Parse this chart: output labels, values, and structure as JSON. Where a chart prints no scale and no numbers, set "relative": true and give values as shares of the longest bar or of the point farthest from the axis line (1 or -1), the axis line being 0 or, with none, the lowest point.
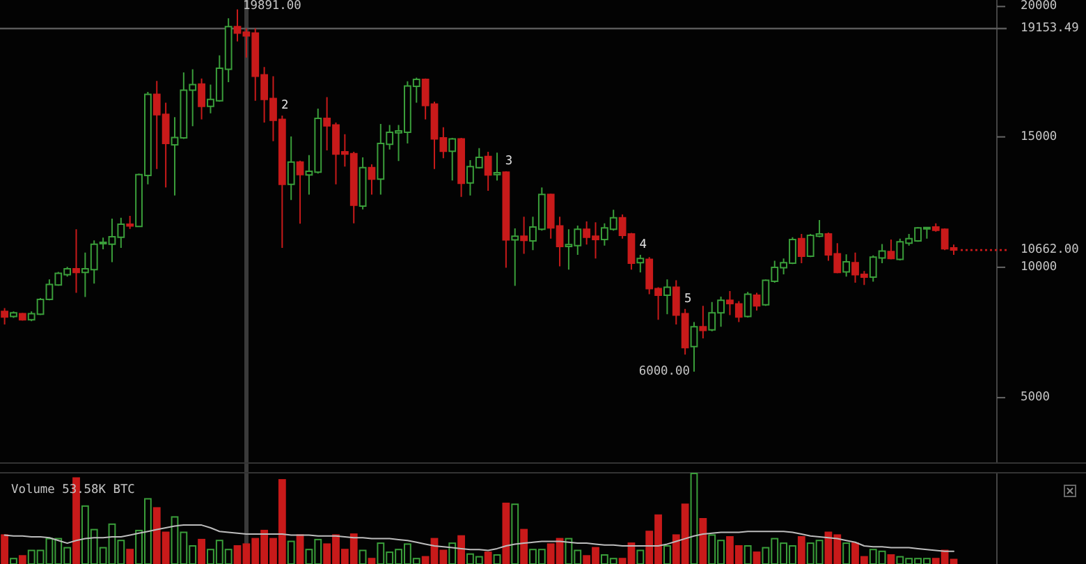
{
  "chart_data": [
    {
      "type": "candlestick",
      "categories": [
        null,
        null,
        null,
        null,
        null,
        null,
        null,
        null,
        null,
        null,
        null,
        null,
        null,
        null,
        null,
        null,
        null,
        null,
        null,
        null,
        null,
        null,
        null,
        null,
        null,
        null,
        null,
        null,
        null,
        null,
        null,
        null,
        null,
        null,
        null,
        null,
        null,
        null,
        null,
        null,
        null,
        null,
        null,
        null,
        null,
        null,
        null,
        null,
        null,
        null,
        null,
        null,
        null,
        null,
        null,
        null,
        null,
        null,
        null,
        null,
        null,
        null,
        null,
        null,
        null,
        null,
        null,
        null,
        null,
        null,
        null,
        null,
        null,
        null,
        null,
        null,
        null,
        null,
        null,
        null,
        null,
        null,
        null,
        null,
        null,
        null,
        null,
        null,
        null,
        null,
        null,
        null,
        null,
        null,
        null,
        null,
        null,
        null,
        null,
        null,
        null,
        null,
        null,
        null,
        null,
        null,
        null
      ],
      "ohlc": [
        [
          8308,
          8433,
          7810,
          8095
        ],
        [
          8113,
          8308,
          8060,
          8255
        ],
        [
          8220,
          8255,
          7953,
          7989
        ],
        [
          7989,
          8308,
          7936,
          8220
        ],
        [
          8202,
          8824,
          8167,
          8771
        ],
        [
          8771,
          9536,
          8735,
          9340
        ],
        [
          9322,
          9820,
          9287,
          9767
        ],
        [
          9713,
          10016,
          9642,
          9945
        ],
        [
          9945,
          11457,
          9020,
          9802
        ],
        [
          9802,
          10567,
          8860,
          9945
        ],
        [
          9909,
          11030,
          9376,
          10887
        ],
        [
          10905,
          11136,
          10692,
          10958
        ],
        [
          10887,
          11866,
          10194,
          11172
        ],
        [
          11154,
          11902,
          10745,
          11653
        ],
        [
          11653,
          11973,
          11475,
          11582
        ],
        [
          11564,
          13592,
          11546,
          13556
        ],
        [
          13521,
          16723,
          13183,
          16634
        ],
        [
          16634,
          17149,
          13770,
          15849
        ],
        [
          15867,
          16312,
          13058,
          14748
        ],
        [
          14694,
          15760,
          12754,
          14979
        ],
        [
          14961,
          17470,
          14926,
          16794
        ],
        [
          16794,
          17594,
          15407,
          17007
        ],
        [
          17025,
          17240,
          15673,
          16171
        ],
        [
          16171,
          17007,
          15904,
          16438
        ],
        [
          16385,
          18128,
          16350,
          17630
        ],
        [
          17594,
          19551,
          17096,
          19231
        ],
        [
          19231,
          19891,
          18662,
          18982
        ],
        [
          19017,
          19160,
          18039,
          18875
        ],
        [
          18982,
          19160,
          16385,
          17328
        ],
        [
          17381,
          17683,
          15548,
          16438
        ],
        [
          16474,
          17328,
          14837,
          15638
        ],
        [
          15673,
          15815,
          10745,
          13183
        ],
        [
          13183,
          15015,
          12577,
          14036
        ],
        [
          14036,
          14090,
          11671,
          13556
        ],
        [
          13539,
          14304,
          12790,
          13681
        ],
        [
          13646,
          16083,
          13592,
          15709
        ],
        [
          15709,
          16528,
          14481,
          15424
        ],
        [
          15460,
          15548,
          13183,
          14339
        ],
        [
          14428,
          15104,
          13859,
          14339
        ],
        [
          14357,
          14428,
          11688,
          12382
        ],
        [
          12346,
          14215,
          12221,
          13823
        ],
        [
          13823,
          13948,
          12790,
          13379
        ],
        [
          13379,
          15495,
          12790,
          14749
        ],
        [
          14713,
          15460,
          14517,
          15175
        ],
        [
          15157,
          15460,
          14072,
          15228
        ],
        [
          15175,
          17132,
          14749,
          16954
        ],
        [
          16936,
          17274,
          16314,
          17203
        ],
        [
          17203,
          17239,
          15673,
          16207
        ],
        [
          16260,
          16349,
          13770,
          14926
        ],
        [
          14961,
          15371,
          14179,
          14446
        ],
        [
          14446,
          14961,
          13325,
          14926
        ],
        [
          14926,
          14961,
          12702,
          13218
        ],
        [
          13236,
          14108,
          12754,
          13859
        ],
        [
          13823,
          14570,
          13788,
          14215
        ],
        [
          14250,
          14428,
          12932,
          13539
        ],
        [
          13557,
          14393,
          13325,
          13628
        ],
        [
          13646,
          13681,
          9980,
          11048
        ],
        [
          11048,
          11493,
          9287,
          11190
        ],
        [
          11190,
          11937,
          10514,
          11030
        ],
        [
          11012,
          11937,
          10656,
          11546
        ],
        [
          11457,
          13059,
          11404,
          12793
        ],
        [
          12793,
          12829,
          11101,
          11511
        ],
        [
          11582,
          11937,
          10034,
          10798
        ],
        [
          10798,
          11457,
          9909,
          10870
        ],
        [
          10834,
          11599,
          10478,
          11457
        ],
        [
          11457,
          11759,
          10870,
          11154
        ],
        [
          11190,
          11724,
          10336,
          11066
        ],
        [
          11066,
          11688,
          10834,
          11511
        ],
        [
          11457,
          12204,
          11404,
          11902
        ],
        [
          11902,
          12027,
          11101,
          11226
        ],
        [
          11279,
          11315,
          9909,
          10158
        ],
        [
          10176,
          10478,
          9802,
          10336
        ],
        [
          10301,
          10390,
          8966,
          9180
        ],
        [
          9180,
          9233,
          7988,
          8931
        ],
        [
          8931,
          9536,
          8202,
          9233
        ],
        [
          9233,
          9500,
          7810,
          8166
        ],
        [
          8220,
          8398,
          6654,
          6921
        ],
        [
          6957,
          7900,
          6000,
          7722
        ],
        [
          7722,
          8522,
          7276,
          7580
        ],
        [
          7598,
          8665,
          7544,
          8256
        ],
        [
          8256,
          8878,
          7722,
          8736
        ],
        [
          8736,
          9091,
          8166,
          8611
        ],
        [
          8593,
          8700,
          7900,
          8095
        ],
        [
          8113,
          9056,
          8077,
          8967
        ],
        [
          8931,
          9020,
          8344,
          8522
        ],
        [
          8558,
          9536,
          8522,
          9500
        ],
        [
          9465,
          10247,
          9411,
          9998
        ],
        [
          9980,
          10336,
          9731,
          10176
        ],
        [
          10158,
          11154,
          10123,
          11066
        ],
        [
          11101,
          11279,
          10158,
          10425
        ],
        [
          10425,
          11279,
          10390,
          11226
        ],
        [
          11190,
          11813,
          11154,
          11279
        ],
        [
          11279,
          11332,
          10247,
          10478
        ],
        [
          10514,
          10923,
          9767,
          9802
        ],
        [
          9820,
          10496,
          9642,
          10212
        ],
        [
          10176,
          10567,
          9411,
          9714
        ],
        [
          9731,
          9856,
          9322,
          9625
        ],
        [
          9625,
          10460,
          9447,
          10390
        ],
        [
          10354,
          10888,
          10158,
          10621
        ],
        [
          10603,
          11066,
          10301,
          10336
        ],
        [
          10301,
          11101,
          10265,
          10976
        ],
        [
          10923,
          11279,
          10834,
          11101
        ],
        [
          11012,
          11546,
          10976,
          11511
        ],
        [
          11475,
          11546,
          11101,
          11528
        ],
        [
          11546,
          11688,
          11368,
          11421
        ],
        [
          11457,
          11493,
          10656,
          10710
        ],
        [
          10745,
          10870,
          10478,
          10662
        ]
      ],
      "colors": [
        "#c81a1a",
        "#3a9e3a",
        "#c81a1a",
        "#3a9e3a",
        "#3a9e3a",
        "#3a9e3a",
        "#3a9e3a",
        "#3a9e3a",
        "#c81a1a",
        "#3a9e3a",
        "#3a9e3a",
        "#3a9e3a",
        "#3a9e3a",
        "#3a9e3a",
        "#c81a1a",
        "#3a9e3a",
        "#3a9e3a",
        "#c81a1a",
        "#c81a1a",
        "#3a9e3a",
        "#3a9e3a",
        "#3a9e3a",
        "#c81a1a",
        "#3a9e3a",
        "#3a9e3a",
        "#3a9e3a",
        "#c81a1a",
        "#c81a1a",
        "#c81a1a",
        "#c81a1a",
        "#c81a1a",
        "#c81a1a",
        "#3a9e3a",
        "#c81a1a",
        "#3a9e3a",
        "#3a9e3a",
        "#c81a1a",
        "#c81a1a",
        "#c81a1a",
        "#c81a1a",
        "#3a9e3a",
        "#c81a1a",
        "#3a9e3a",
        "#3a9e3a",
        "#3a9e3a",
        "#3a9e3a",
        "#3a9e3a",
        "#c81a1a",
        "#c81a1a",
        "#c81a1a",
        "#3a9e3a",
        "#c81a1a",
        "#3a9e3a",
        "#3a9e3a",
        "#c81a1a",
        "#3a9e3a",
        "#c81a1a",
        "#3a9e3a",
        "#c81a1a",
        "#3a9e3a",
        "#3a9e3a",
        "#c81a1a",
        "#c81a1a",
        "#3a9e3a",
        "#3a9e3a",
        "#c81a1a",
        "#c81a1a",
        "#3a9e3a",
        "#3a9e3a",
        "#c81a1a",
        "#c81a1a",
        "#3a9e3a",
        "#c81a1a",
        "#c81a1a",
        "#3a9e3a",
        "#c81a1a",
        "#c81a1a",
        "#3a9e3a",
        "#c81a1a",
        "#3a9e3a",
        "#3a9e3a",
        "#c81a1a",
        "#c81a1a",
        "#3a9e3a",
        "#c81a1a",
        "#3a9e3a",
        "#3a9e3a",
        "#3a9e3a",
        "#3a9e3a",
        "#c81a1a",
        "#3a9e3a",
        "#3a9e3a",
        "#c81a1a",
        "#c81a1a",
        "#3a9e3a",
        "#c81a1a",
        "#c81a1a",
        "#3a9e3a",
        "#3a9e3a",
        "#c81a1a",
        "#3a9e3a",
        "#3a9e3a",
        "#3a9e3a",
        "#3a9e3a",
        "#c81a1a",
        "#c81a1a",
        "#c81a1a"
      ],
      "ylim": [
        2520,
        20250
      ],
      "yticks": [
        5000,
        10000,
        15000,
        20000
      ],
      "ref_lines": [
        {
          "axis": "y",
          "value": 19153.49,
          "label": "19153.49",
          "color": "#5a5a5a"
        },
        {
          "axis": "y",
          "value": 10662,
          "label": "10662.00",
          "color": "#c81a1a",
          "line_style": "dotted"
        }
      ],
      "annotations": [
        "19891.00",
        {
          "text": "2",
          "y": 15815
        },
        {
          "text": "3",
          "y": 13681
        },
        {
          "text": "4",
          "y": 10478
        },
        {
          "text": "5",
          "y": 8398
        },
        "6000.00"
      ]
    },
    {
      "type": "bar",
      "title": "Volume 53.58K BTC",
      "relative": true,
      "categories": [
        null,
        null,
        null,
        null,
        null,
        null,
        null,
        null,
        null,
        null,
        null,
        null,
        null,
        null,
        null,
        null,
        null,
        null,
        null,
        null,
        null,
        null,
        null,
        null,
        null,
        null,
        null,
        null,
        null,
        null,
        null,
        null,
        null,
        null,
        null,
        null,
        null,
        null,
        null,
        null,
        null,
        null,
        null,
        null,
        null,
        null,
        null,
        null,
        null,
        null,
        null,
        null,
        null,
        null,
        null,
        null,
        null,
        null,
        null,
        null,
        null,
        null,
        null,
        null,
        null,
        null,
        null,
        null,
        null,
        null,
        null,
        null,
        null,
        null,
        null,
        null,
        null,
        null,
        null,
        null,
        null,
        null,
        null,
        null,
        null,
        null,
        null,
        null,
        null,
        null,
        null,
        null,
        null,
        null,
        null,
        null,
        null,
        null,
        null,
        null,
        null,
        null,
        null,
        null,
        null,
        null,
        null
      ],
      "series": [
        {
          "type": "bar",
          "values": [
            0.32,
            0.06,
            0.09,
            0.15,
            0.15,
            0.28,
            0.28,
            0.18,
            0.95,
            0.64,
            0.38,
            0.18,
            0.44,
            0.26,
            0.16,
            0.37,
            0.72,
            0.62,
            0.35,
            0.52,
            0.35,
            0.2,
            0.27,
            0.16,
            0.26,
            0.16,
            0.2,
            0.22,
            0.28,
            0.37,
            0.28,
            0.93,
            0.25,
            0.32,
            0.16,
            0.27,
            0.22,
            0.32,
            0.16,
            0.33,
            0.15,
            0.06,
            0.23,
            0.13,
            0.16,
            0.22,
            0.06,
            0.08,
            0.28,
            0.15,
            0.23,
            0.31,
            0.11,
            0.08,
            0.13,
            0.1,
            0.67,
            0.66,
            0.38,
            0.16,
            0.16,
            0.22,
            0.28,
            0.28,
            0.15,
            0.09,
            0.18,
            0.1,
            0.06,
            0.06,
            0.23,
            0.15,
            0.36,
            0.54,
            0.2,
            0.32,
            0.66,
            1,
            0.5,
            0.32,
            0.26,
            0.3,
            0.2,
            0.2,
            0.13,
            0.18,
            0.28,
            0.23,
            0.2,
            0.3,
            0.23,
            0.26,
            0.35,
            0.32,
            0.23,
            0.23,
            0.08,
            0.16,
            0.14,
            0.1,
            0.08,
            0.06,
            0.06,
            0.06,
            0.06,
            0.15,
            0.05
          ],
          "colors": [
            "#c81a1a",
            "#3a9e3a",
            "#c81a1a",
            "#3a9e3a",
            "#3a9e3a",
            "#3a9e3a",
            "#3a9e3a",
            "#3a9e3a",
            "#c81a1a",
            "#3a9e3a",
            "#3a9e3a",
            "#3a9e3a",
            "#3a9e3a",
            "#3a9e3a",
            "#c81a1a",
            "#3a9e3a",
            "#3a9e3a",
            "#c81a1a",
            "#c81a1a",
            "#3a9e3a",
            "#3a9e3a",
            "#3a9e3a",
            "#c81a1a",
            "#3a9e3a",
            "#3a9e3a",
            "#3a9e3a",
            "#c81a1a",
            "#c81a1a",
            "#c81a1a",
            "#c81a1a",
            "#c81a1a",
            "#c81a1a",
            "#3a9e3a",
            "#c81a1a",
            "#3a9e3a",
            "#3a9e3a",
            "#c81a1a",
            "#c81a1a",
            "#c81a1a",
            "#c81a1a",
            "#3a9e3a",
            "#c81a1a",
            "#3a9e3a",
            "#3a9e3a",
            "#3a9e3a",
            "#3a9e3a",
            "#3a9e3a",
            "#c81a1a",
            "#c81a1a",
            "#c81a1a",
            "#3a9e3a",
            "#c81a1a",
            "#3a9e3a",
            "#3a9e3a",
            "#c81a1a",
            "#3a9e3a",
            "#c81a1a",
            "#3a9e3a",
            "#c81a1a",
            "#3a9e3a",
            "#3a9e3a",
            "#c81a1a",
            "#c81a1a",
            "#3a9e3a",
            "#3a9e3a",
            "#c81a1a",
            "#c81a1a",
            "#3a9e3a",
            "#3a9e3a",
            "#c81a1a",
            "#c81a1a",
            "#3a9e3a",
            "#c81a1a",
            "#c81a1a",
            "#3a9e3a",
            "#c81a1a",
            "#c81a1a",
            "#3a9e3a",
            "#c81a1a",
            "#3a9e3a",
            "#3a9e3a",
            "#c81a1a",
            "#c81a1a",
            "#3a9e3a",
            "#c81a1a",
            "#3a9e3a",
            "#3a9e3a",
            "#3a9e3a",
            "#3a9e3a",
            "#c81a1a",
            "#3a9e3a",
            "#3a9e3a",
            "#c81a1a",
            "#c81a1a",
            "#3a9e3a",
            "#c81a1a",
            "#c81a1a",
            "#3a9e3a",
            "#3a9e3a",
            "#c81a1a",
            "#3a9e3a",
            "#3a9e3a",
            "#3a9e3a",
            "#3a9e3a",
            "#c81a1a",
            "#c81a1a",
            "#c81a1a"
          ]
        },
        {
          "type": "line",
          "color": "#bdbdbd",
          "values": [
            0.32,
            0.31,
            0.31,
            0.3,
            0.3,
            0.29,
            0.26,
            0.23,
            0.26,
            0.28,
            0.29,
            0.29,
            0.3,
            0.3,
            0.32,
            0.34,
            0.36,
            0.38,
            0.4,
            0.42,
            0.43,
            0.43,
            0.43,
            0.4,
            0.36,
            0.35,
            0.34,
            0.33,
            0.33,
            0.33,
            0.33,
            0.33,
            0.32,
            0.32,
            0.32,
            0.31,
            0.31,
            0.31,
            0.3,
            0.29,
            0.29,
            0.28,
            0.28,
            0.28,
            0.27,
            0.26,
            0.24,
            0.22,
            0.2,
            0.19,
            0.18,
            0.17,
            0.16,
            0.16,
            0.15,
            0.17,
            0.2,
            0.22,
            0.23,
            0.24,
            0.25,
            0.25,
            0.25,
            0.24,
            0.23,
            0.23,
            0.22,
            0.21,
            0.21,
            0.2,
            0.2,
            0.2,
            0.2,
            0.2,
            0.22,
            0.25,
            0.28,
            0.31,
            0.33,
            0.34,
            0.35,
            0.35,
            0.35,
            0.36,
            0.36,
            0.36,
            0.36,
            0.36,
            0.35,
            0.33,
            0.31,
            0.3,
            0.29,
            0.28,
            0.26,
            0.24,
            0.2,
            0.19,
            0.19,
            0.18,
            0.18,
            0.18,
            0.17,
            0.16,
            0.15,
            0.14,
            0.14
          ]
        }
      ]
    }
  ]
}
